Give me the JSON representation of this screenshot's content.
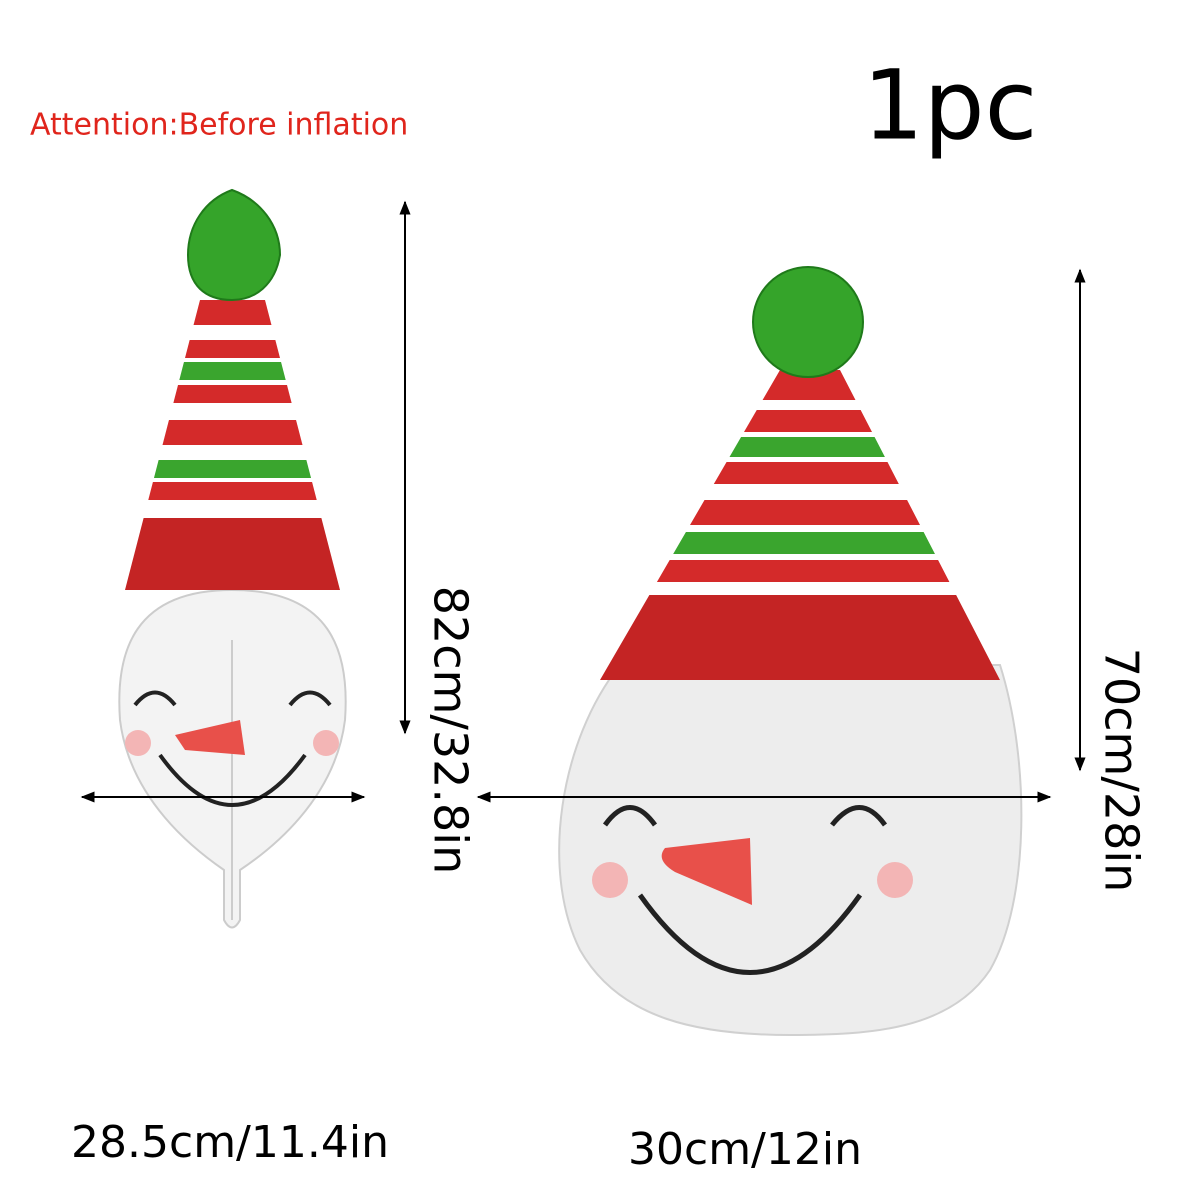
{
  "attention": "Attention:Before inflation",
  "quantity": "1pc",
  "before": {
    "height": "82cm/32.8in",
    "width": "28.5cm/11.4in"
  },
  "after": {
    "height": "70cm/28in",
    "width": "30cm/12in"
  }
}
